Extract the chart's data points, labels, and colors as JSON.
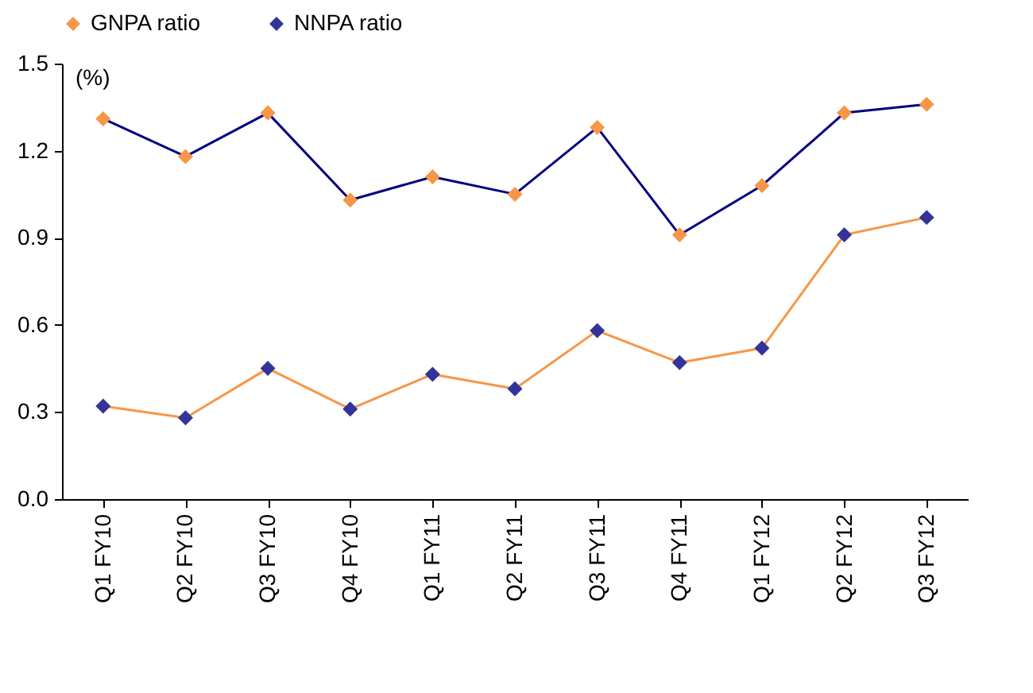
{
  "chart_data": {
    "type": "line",
    "ylabel": "(%)",
    "categories": [
      "Q1 FY10",
      "Q2 FY10",
      "Q3 FY10",
      "Q4 FY10",
      "Q1 FY11",
      "Q2 FY11",
      "Q3 FY11",
      "Q4 FY11",
      "Q1 FY12",
      "Q2 FY12",
      "Q3 FY12"
    ],
    "series": [
      {
        "name": "GNPA ratio",
        "color": "#000080",
        "colors": [
          "#f79646",
          "#f79646",
          "#f79646",
          "#f79646",
          "#f79646",
          "#f79646",
          "#f79646",
          "#f79646",
          "#f79646",
          "#f79646",
          "#f79646"
        ],
        "values": [
          1.31,
          1.18,
          1.33,
          1.03,
          1.11,
          1.05,
          1.28,
          0.91,
          1.08,
          1.33,
          1.36
        ]
      },
      {
        "name": "NNPA ratio",
        "color": "#f79646",
        "colors": [
          "#333399",
          "#333399",
          "#333399",
          "#333399",
          "#333399",
          "#333399",
          "#333399",
          "#333399",
          "#333399",
          "#333399",
          "#333399"
        ],
        "values": [
          0.32,
          0.28,
          0.45,
          0.31,
          0.43,
          0.38,
          0.58,
          0.47,
          0.52,
          0.91,
          0.97
        ]
      }
    ],
    "ylim": [
      0,
      1.5
    ],
    "yticks": [
      {
        "value": 0,
        "label": "0.0"
      },
      {
        "value": 0.3,
        "label": "0.3"
      },
      {
        "value": 0.6,
        "label": "0.6"
      },
      {
        "value": 0.9,
        "label": "0.9"
      },
      {
        "value": 1.2,
        "label": "1.2"
      },
      {
        "value": 1.5,
        "label": "1.5"
      }
    ],
    "grid": false,
    "legend": "top",
    "marker": "diamond",
    "line_style": "solid"
  }
}
